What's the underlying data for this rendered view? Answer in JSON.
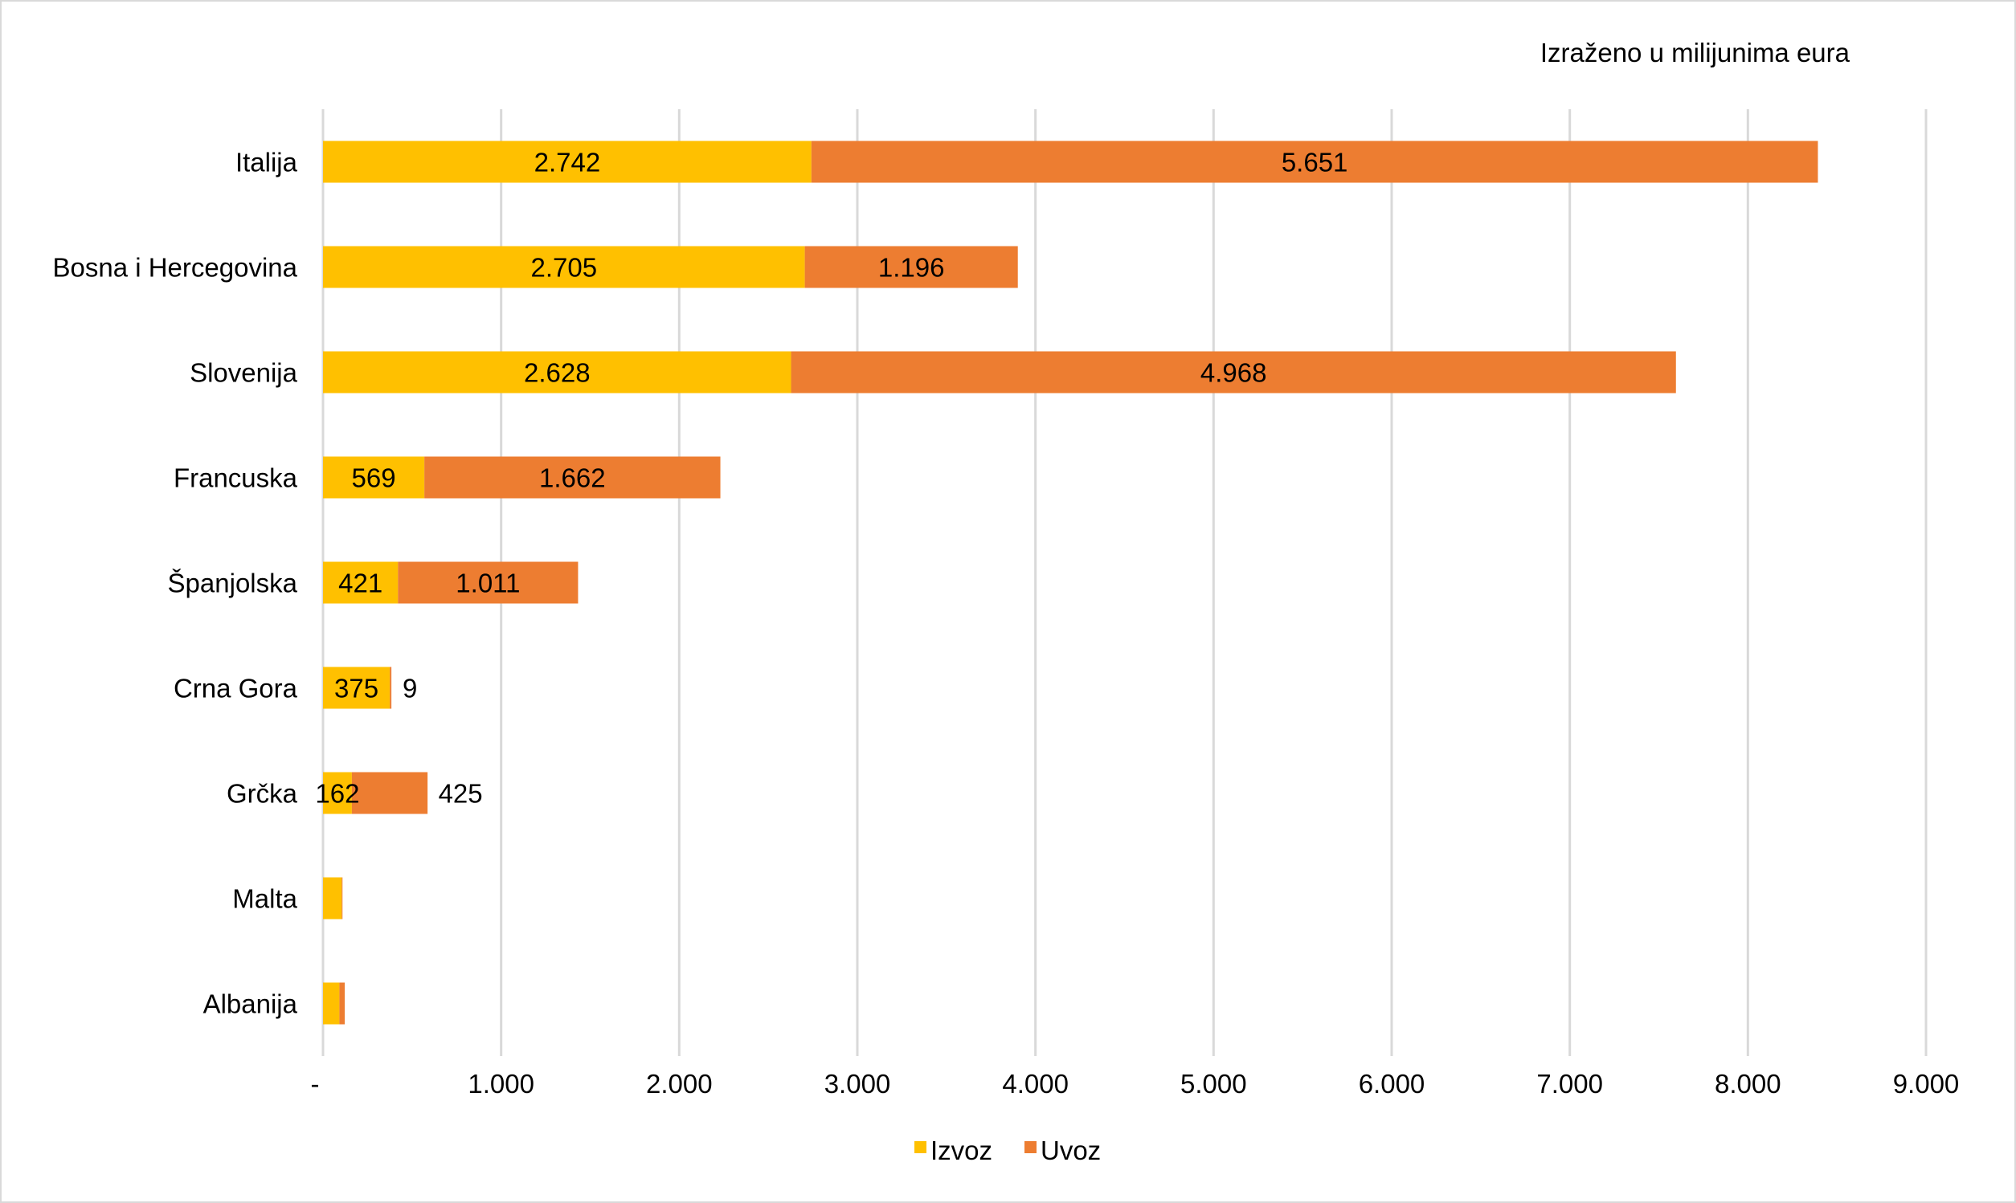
{
  "chart_data": {
    "type": "bar",
    "orientation": "horizontal",
    "stacked": true,
    "unit_note": "Izraženo u milijunima eura",
    "categories": [
      "Italija",
      "Bosna i Hercegovina",
      "Slovenija",
      "Francuska",
      "Španjolska",
      "Crna Gora",
      "Grčka",
      "Malta",
      "Albanija"
    ],
    "series": [
      {
        "name": "Izvoz",
        "color": "#FFC000",
        "values": [
          2742,
          2705,
          2628,
          569,
          421,
          375,
          162,
          105,
          92
        ],
        "labels": [
          "2.742",
          "2.705",
          "2.628",
          "569",
          "421",
          "375",
          "162",
          "",
          ""
        ]
      },
      {
        "name": "Uvoz",
        "color": "#ED7D31",
        "values": [
          5651,
          1196,
          4968,
          1662,
          1011,
          9,
          425,
          3,
          30
        ],
        "labels": [
          "5.651",
          "1.196",
          "4.968",
          "1.662",
          "1.011",
          "9",
          "425",
          "",
          ""
        ]
      }
    ],
    "xlim": [
      0,
      9000
    ],
    "xticks": [
      0,
      1000,
      2000,
      3000,
      4000,
      5000,
      6000,
      7000,
      8000,
      9000
    ],
    "xtick_labels": [
      "-",
      "1.000",
      "2.000",
      "3.000",
      "4.000",
      "5.000",
      "6.000",
      "7.000",
      "8.000",
      "9.000"
    ],
    "grid": "vertical",
    "legend": "bottom-center"
  }
}
